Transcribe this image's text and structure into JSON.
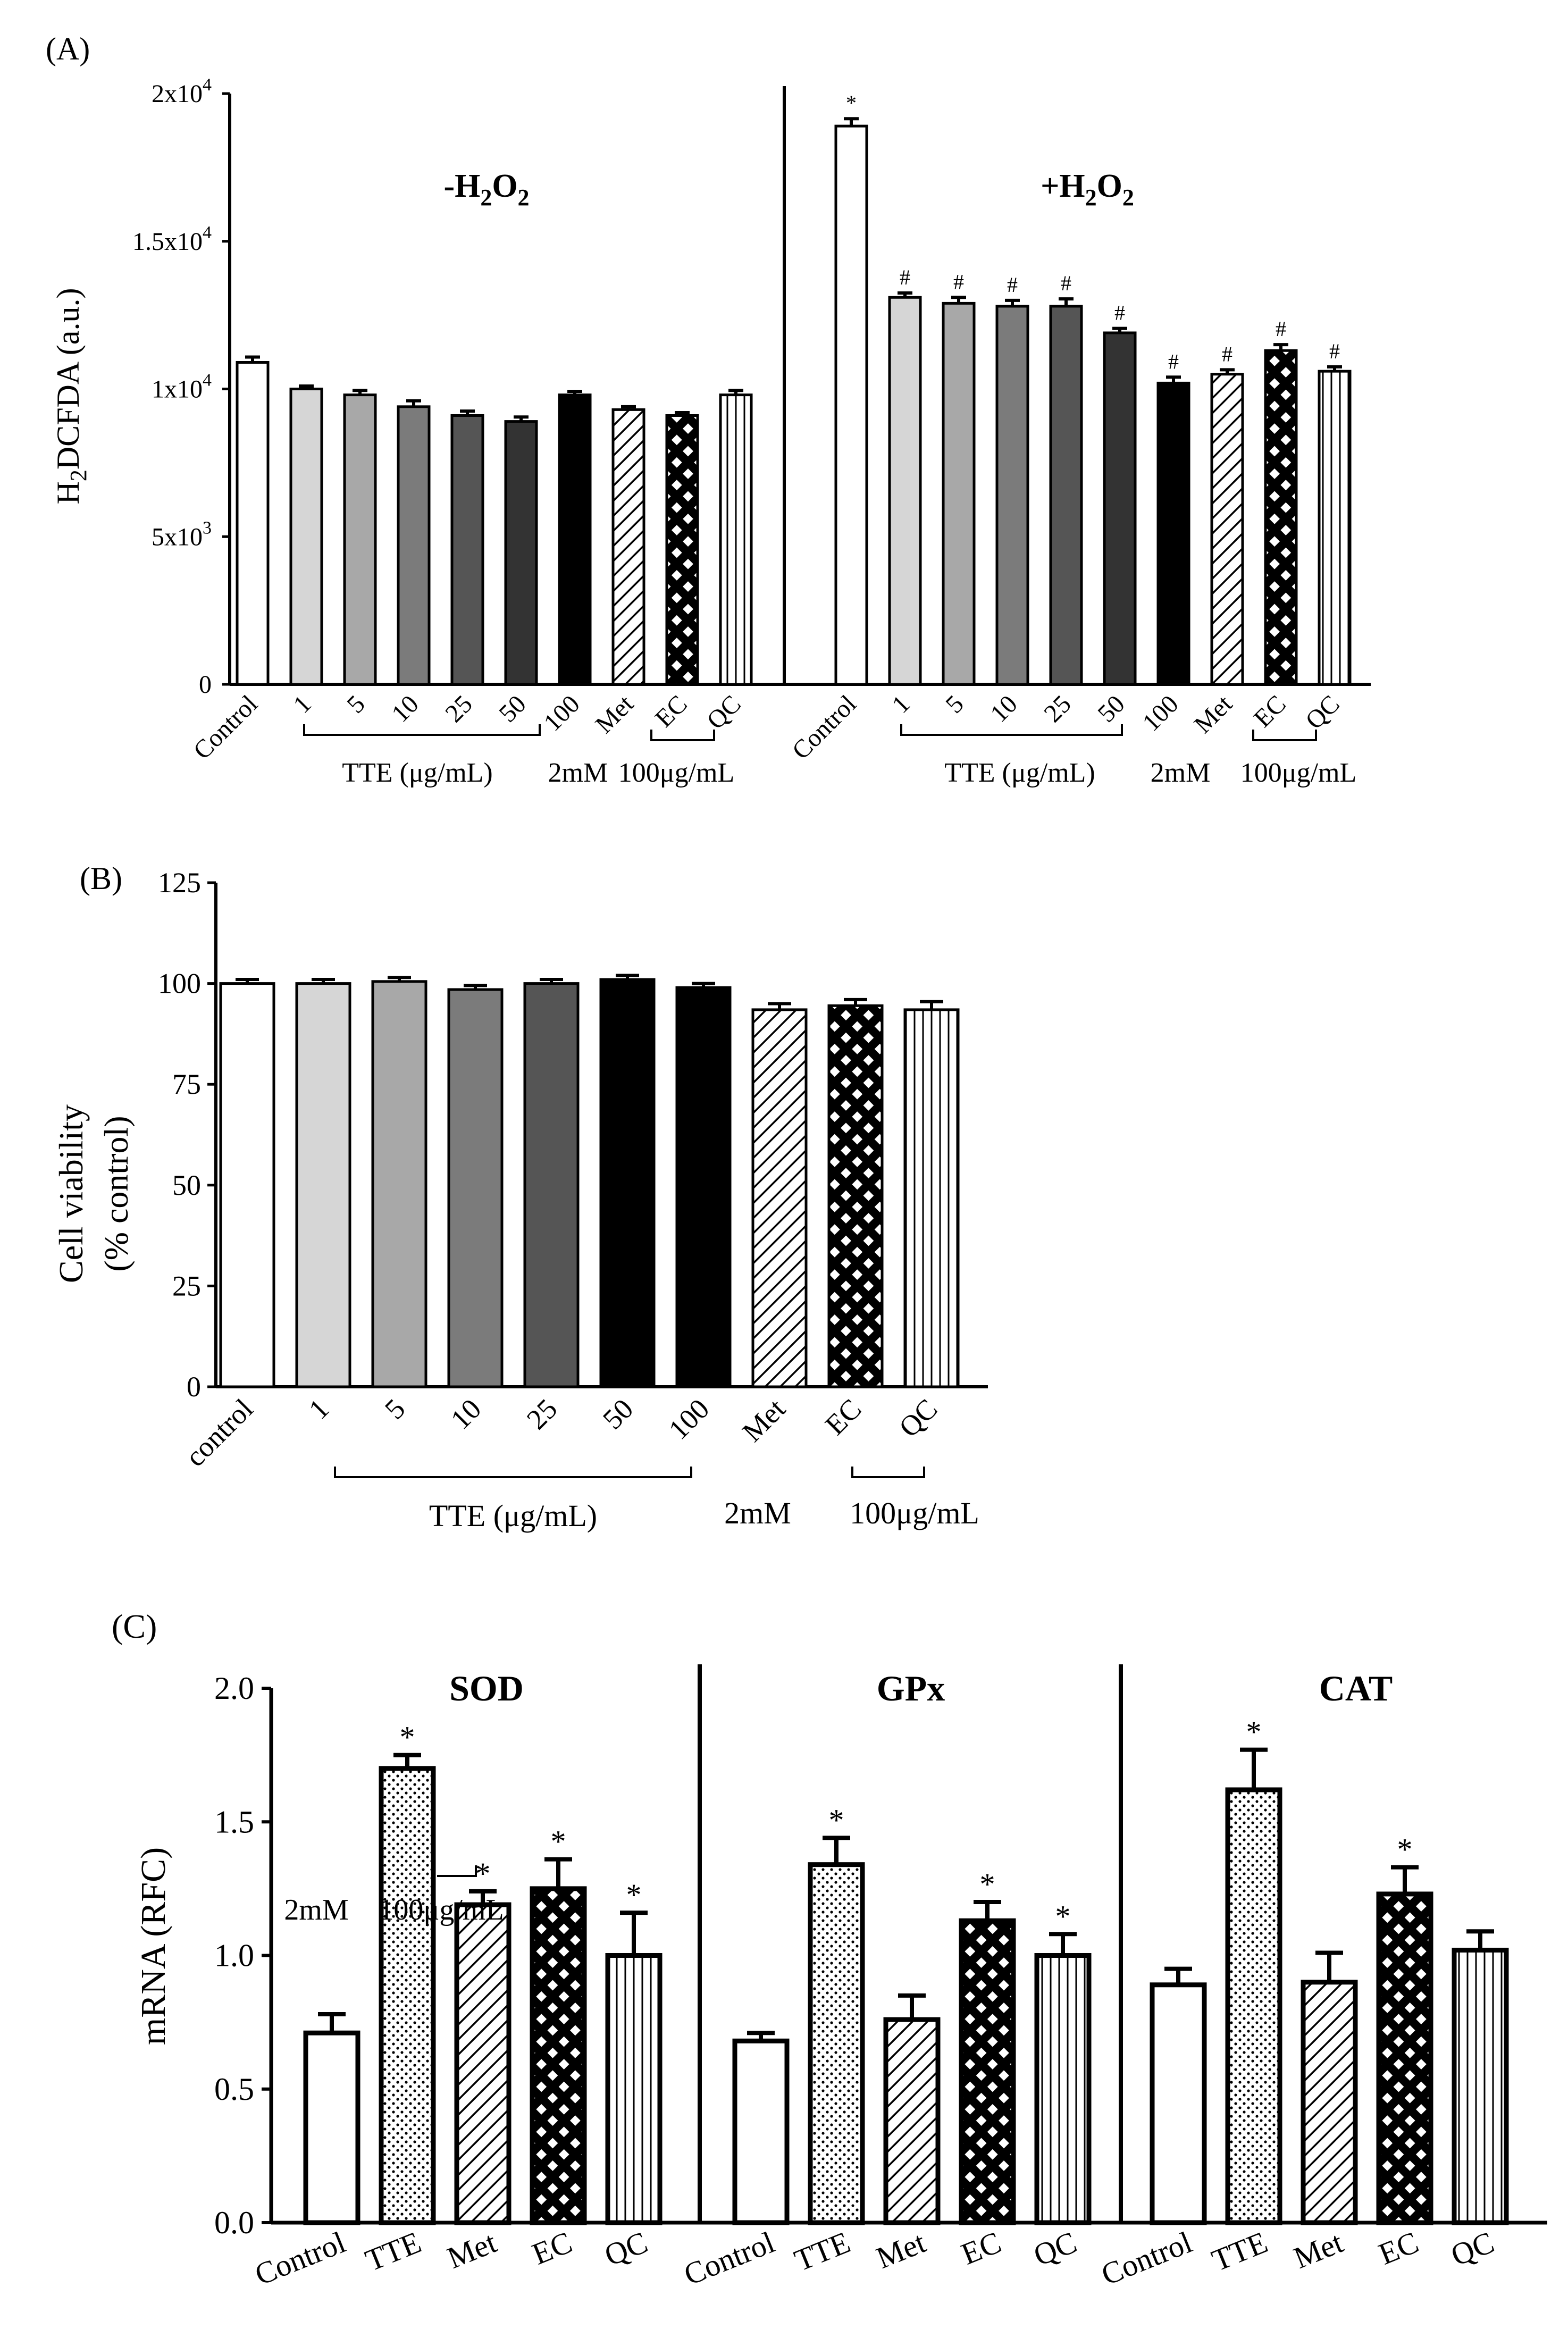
{
  "chart_data": [
    {
      "type": "bar",
      "panel": "A",
      "panel_label": "(A)",
      "ylabel_main": "H",
      "ylabel_sub": "2",
      "ylabel_rest": "DCFDA (a.u.)",
      "ylim": [
        0,
        20000
      ],
      "yticks": [
        {
          "value": 0,
          "base": "0",
          "exp": ""
        },
        {
          "value": 5000,
          "base": "5x10",
          "exp": "3"
        },
        {
          "value": 10000,
          "base": "1x10",
          "exp": "4"
        },
        {
          "value": 15000,
          "base": "1.5x10",
          "exp": "4"
        },
        {
          "value": 20000,
          "base": "2x10",
          "exp": "4"
        }
      ],
      "groups": [
        {
          "name": "minus",
          "title_pre": "-H",
          "title_sub": "2",
          "title_o": "O",
          "title_sub2": "2",
          "categories": [
            "Control",
            "1",
            "5",
            "10",
            "25",
            "50",
            "100",
            "Met",
            "EC",
            "QC"
          ],
          "values": [
            10900,
            10000,
            9800,
            9400,
            9100,
            8900,
            9800,
            9300,
            9100,
            9800
          ],
          "errors": [
            180,
            100,
            150,
            200,
            150,
            150,
            120,
            100,
            100,
            150
          ],
          "patterns": [
            "white",
            "g1",
            "g2",
            "g3",
            "g4",
            "g5",
            "black",
            "diag",
            "cross",
            "vert"
          ],
          "annotations": [
            "",
            "",
            "",
            "",
            "",
            "",
            "",
            "",
            "",
            ""
          ],
          "tte_label": "TTE (μg/mL)",
          "met_label": "2mM",
          "ecqc_label": "100μg/mL"
        },
        {
          "name": "plus",
          "title_pre": "+H",
          "title_sub": "2",
          "title_o": "O",
          "title_sub2": "2",
          "categories": [
            "Control",
            "1",
            "5",
            "10",
            "25",
            "50",
            "100",
            "Met",
            "EC",
            "QC"
          ],
          "values": [
            18900,
            13100,
            12900,
            12800,
            12800,
            11900,
            10200,
            10500,
            11300,
            10600
          ],
          "errors": [
            250,
            150,
            200,
            200,
            250,
            150,
            200,
            150,
            200,
            150
          ],
          "patterns": [
            "white",
            "g1",
            "g2",
            "g3",
            "g4",
            "g5",
            "black",
            "diag",
            "cross",
            "vert"
          ],
          "annotations": [
            "*",
            "#",
            "#",
            "#",
            "#",
            "#",
            "#",
            "#",
            "#",
            "#"
          ],
          "tte_label": "TTE (μg/mL)",
          "met_label": "2mM",
          "ecqc_label": "100μg/mL"
        }
      ]
    },
    {
      "type": "bar",
      "panel": "B",
      "panel_label": "(B)",
      "ylabel_line1": "Cell viability",
      "ylabel_line2": "(% control)",
      "ylim": [
        0,
        125
      ],
      "yticks": [
        0,
        25,
        50,
        75,
        100,
        125
      ],
      "categories": [
        "control",
        "1",
        "5",
        "10",
        "25",
        "50",
        "100",
        "Met",
        "EC",
        "QC"
      ],
      "values": [
        100,
        100,
        100.5,
        98.5,
        100,
        101,
        99,
        93.5,
        94.5,
        93.5
      ],
      "errors": [
        1.0,
        1.0,
        1.0,
        1.0,
        1.0,
        1.0,
        1.0,
        1.5,
        1.5,
        2.0
      ],
      "patterns": [
        "white",
        "g1",
        "g2",
        "g3",
        "g4",
        "black",
        "black",
        "diag",
        "cross",
        "vert"
      ],
      "tte_label": "TTE (μg/mL)",
      "met_label": "2mM",
      "ecqc_label": "100μg/mL"
    },
    {
      "type": "bar",
      "panel": "C",
      "panel_label": "(C)",
      "ylabel": "mRNA (RFC)",
      "ylim": [
        0,
        2.0
      ],
      "yticks": [
        "0.0",
        "0.5",
        "1.0",
        "1.5",
        "2.0"
      ],
      "stray_label_a": "2mM",
      "stray_label_b": "100μg/mL",
      "groups": [
        {
          "title": "SOD",
          "categories": [
            "Control",
            "TTE",
            "Met",
            "EC",
            "QC"
          ],
          "values": [
            0.71,
            1.7,
            1.19,
            1.25,
            1.0
          ],
          "errors": [
            0.07,
            0.05,
            0.05,
            0.11,
            0.16
          ],
          "patterns": [
            "white",
            "dots",
            "diag",
            "cross",
            "vert"
          ],
          "annotations": [
            "",
            "*",
            "*",
            "*",
            "*"
          ]
        },
        {
          "title": "GPx",
          "categories": [
            "Control",
            "TTE",
            "Met",
            "EC",
            "QC"
          ],
          "values": [
            0.68,
            1.34,
            0.76,
            1.13,
            1.0
          ],
          "errors": [
            0.03,
            0.1,
            0.09,
            0.07,
            0.08
          ],
          "patterns": [
            "white",
            "dots",
            "diag",
            "cross",
            "vert"
          ],
          "annotations": [
            "",
            "*",
            "",
            "*",
            "*"
          ]
        },
        {
          "title": "CAT",
          "categories": [
            "Control",
            "TTE",
            "Met",
            "EC",
            "QC"
          ],
          "values": [
            0.89,
            1.62,
            0.9,
            1.23,
            1.02
          ],
          "errors": [
            0.06,
            0.15,
            0.11,
            0.1,
            0.07
          ],
          "patterns": [
            "white",
            "dots",
            "diag",
            "cross",
            "vert"
          ],
          "annotations": [
            "",
            "*",
            "",
            "*",
            ""
          ]
        }
      ]
    }
  ]
}
